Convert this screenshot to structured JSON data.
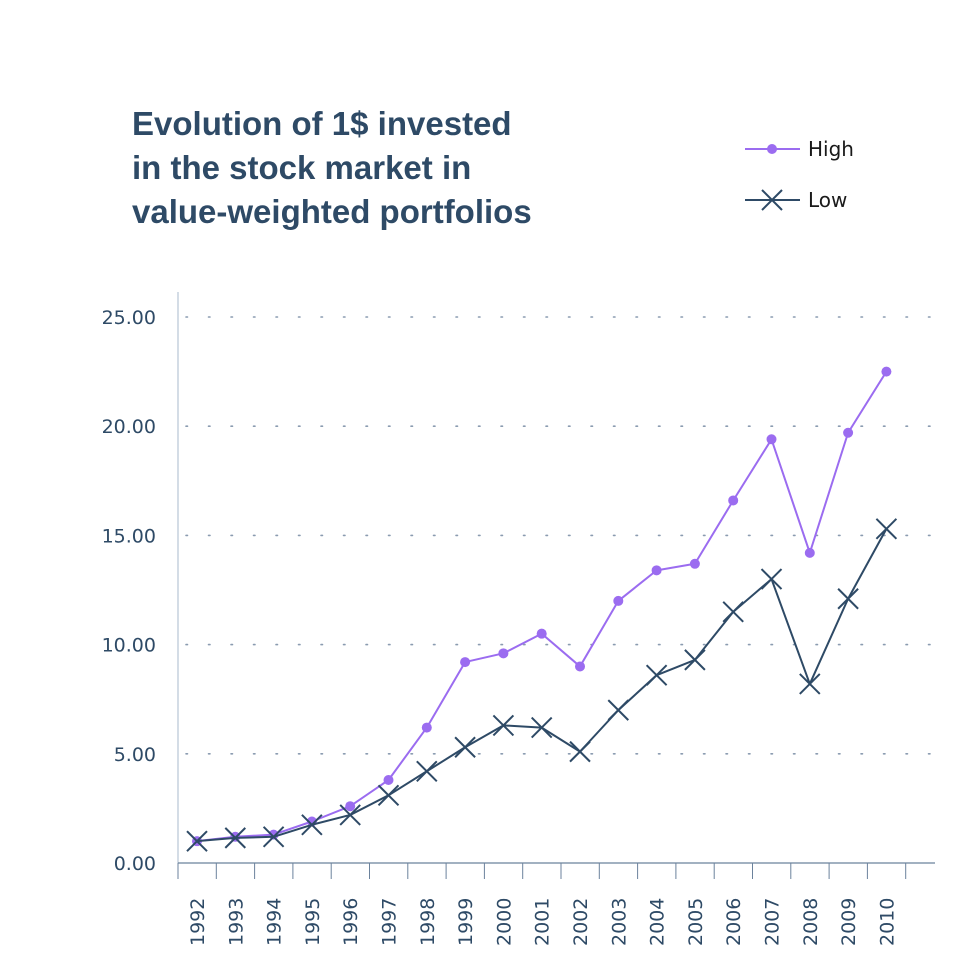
{
  "chart_data": {
    "type": "line",
    "title_lines": [
      "Evolution of 1$ invested",
      "in the stock market in",
      "value-weighted portfolios"
    ],
    "categories": [
      "1992",
      "1993",
      "1994",
      "1995",
      "1996",
      "1997",
      "1998",
      "1999",
      "2000",
      "2001",
      "2002",
      "2003",
      "2004",
      "2005",
      "2006",
      "2007",
      "2008",
      "2009",
      "2010"
    ],
    "series": [
      {
        "name": "High",
        "marker": "circle",
        "color": "#9b6cf0",
        "values": [
          1.0,
          1.2,
          1.3,
          1.9,
          2.6,
          3.8,
          6.2,
          9.2,
          9.6,
          10.5,
          9.0,
          12.0,
          13.4,
          13.7,
          16.6,
          19.4,
          14.2,
          19.7,
          22.5
        ]
      },
      {
        "name": "Low",
        "marker": "x",
        "color": "#2e4a66",
        "values": [
          1.0,
          1.15,
          1.2,
          1.75,
          2.2,
          3.1,
          4.2,
          5.3,
          6.3,
          6.2,
          5.1,
          7.0,
          8.6,
          9.3,
          11.5,
          13.0,
          8.2,
          12.1,
          15.3
        ]
      }
    ],
    "yticks": [
      "0.00",
      "5.00",
      "10.00",
      "15.00",
      "20.00",
      "25.00"
    ],
    "ylim": [
      0,
      25
    ],
    "grid": "horizontal dotted",
    "legend_position": "top-right",
    "xlabel": "",
    "ylabel": ""
  }
}
